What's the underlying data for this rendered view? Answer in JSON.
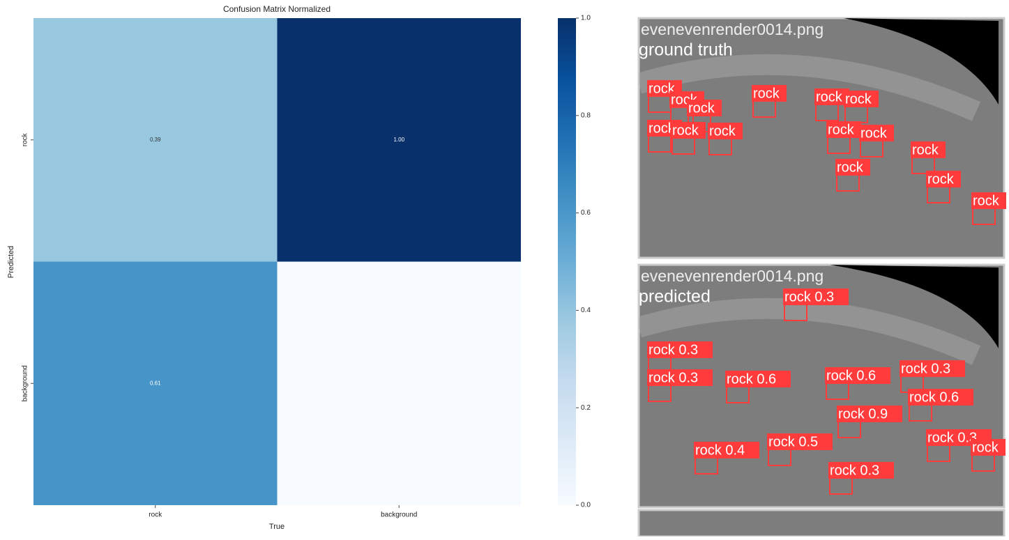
{
  "chart_data": {
    "type": "heatmap",
    "title": "Confusion Matrix Normalized",
    "x_label": "True",
    "y_label": "Predicted",
    "x_categories": [
      "rock",
      "background"
    ],
    "y_categories": [
      "rock",
      "background"
    ],
    "values": [
      [
        0.39,
        1.0
      ],
      [
        0.61,
        0
      ]
    ],
    "value_labels": [
      [
        "0.39",
        "1.00"
      ],
      [
        "0.61",
        null
      ]
    ],
    "colormap": "Blues",
    "clim": [
      0,
      1
    ],
    "cbar_ticks": [
      {
        "value": 0,
        "label": "0.0"
      },
      {
        "value": 0.2,
        "label": "0.2"
      },
      {
        "value": 0.4,
        "label": "0.4"
      },
      {
        "value": 0.6,
        "label": "0.6"
      },
      {
        "value": 0.8,
        "label": "0.8"
      },
      {
        "value": 1,
        "label": "1.0"
      }
    ]
  },
  "image_panels": [
    {
      "file": "evenevenrender0014.png",
      "caption": "ground truth",
      "labels": [
        "rock",
        "rock",
        "rock",
        "rock",
        "rock",
        "rock",
        "rock",
        "rock",
        "rock",
        "rock",
        "rock",
        "rock",
        "rock",
        "rock",
        "rock"
      ]
    },
    {
      "file": "evenevenrender0014.png",
      "caption": "predicted",
      "labels": [
        "rock 0.3",
        "rock 0.3",
        "rock 0.3",
        "rock 0.6",
        "rock 0.6",
        "rock 0.3",
        "rock 0.6",
        "rock 0.9",
        "rock 0.5",
        "rock 0.4",
        "rock 0.3",
        "rock",
        "rock 0.3"
      ]
    }
  ]
}
